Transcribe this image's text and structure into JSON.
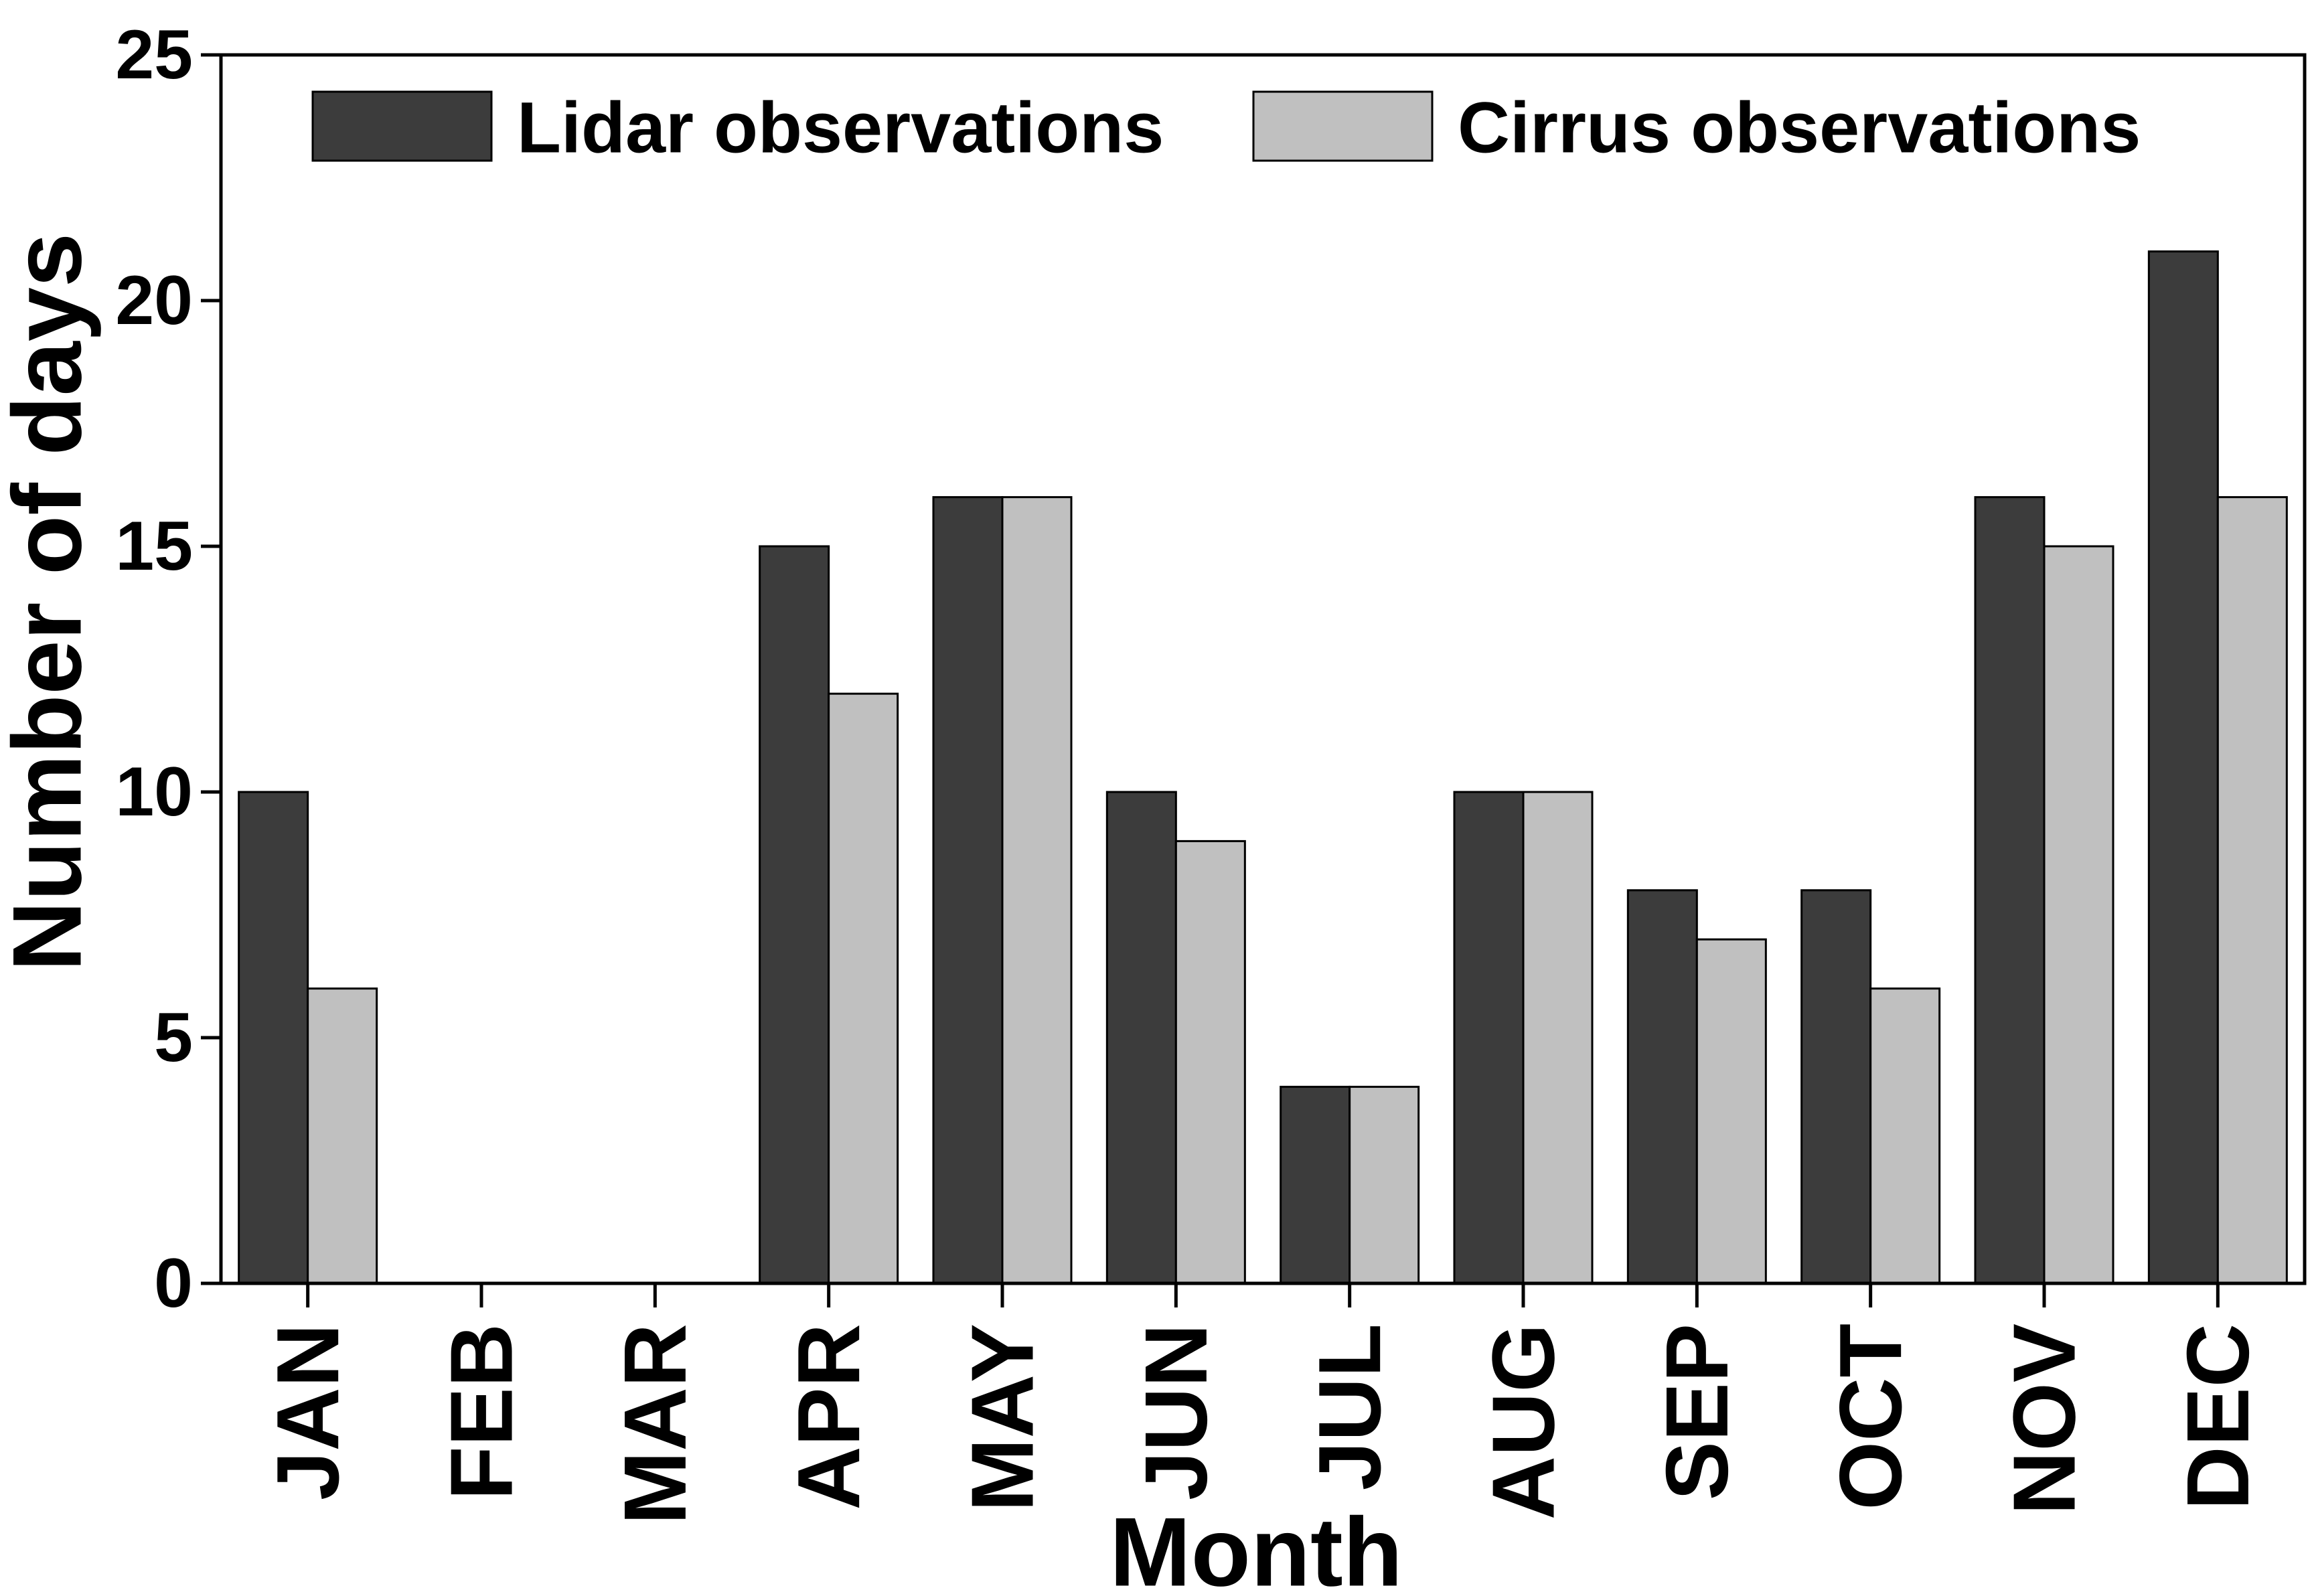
{
  "chart_data": {
    "type": "bar",
    "categories": [
      "JAN",
      "FEB",
      "MAR",
      "APR",
      "MAY",
      "JUN",
      "JUL",
      "AUG",
      "SEP",
      "OCT",
      "NOV",
      "DEC"
    ],
    "series": [
      {
        "name": "Lidar observations",
        "values": [
          10,
          0,
          0,
          15,
          16,
          10,
          4,
          10,
          8,
          8,
          16,
          21
        ],
        "color": "#3c3c3c"
      },
      {
        "name": "Cirrus observations",
        "values": [
          6,
          0,
          0,
          12,
          16,
          9,
          4,
          10,
          7,
          6,
          15,
          16
        ],
        "color": "#c0c0c0"
      }
    ],
    "xlabel": "Month",
    "ylabel": "Number of days",
    "ylim": [
      0,
      25
    ],
    "yticks": [
      0,
      5,
      10,
      15,
      20,
      25
    ],
    "grid": false,
    "legend_position": "top"
  }
}
